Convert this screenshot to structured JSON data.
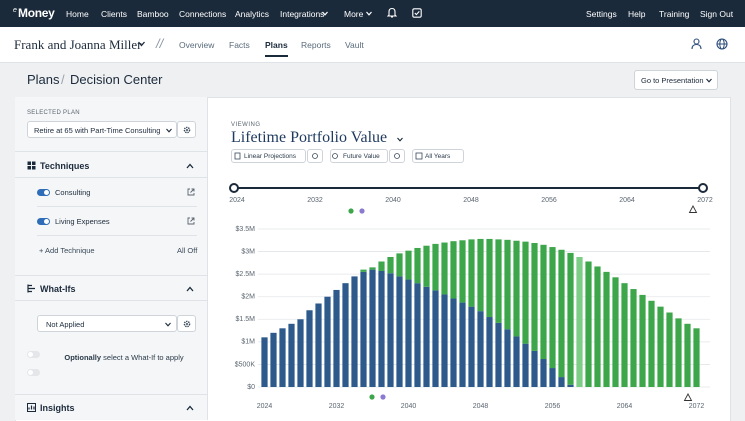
{
  "nav": {
    "logo_prefix": "e",
    "logo": "Money",
    "items": [
      "Home",
      "Clients",
      "Bamboo",
      "Connections",
      "Analytics",
      "Integrations",
      "More"
    ],
    "right_items": [
      "Settings",
      "Help",
      "Training",
      "Sign Out"
    ]
  },
  "client_bar": {
    "client_name": "Frank and Joanna Miller",
    "separator": "//",
    "tabs": [
      "Overview",
      "Facts",
      "Plans",
      "Reports",
      "Vault"
    ],
    "active_tab_index": 2
  },
  "header": {
    "breadcrumb": [
      "Plans",
      "Decision Center"
    ],
    "breadcrumb_separator": "/",
    "button": "Go to Presentation"
  },
  "sidebar": {
    "selected_plan_label": "SELECTED PLAN",
    "selected_plan": "Retire at 65 with Part-Time Consulting",
    "techniques": {
      "title": "Techniques",
      "items": [
        "Consulting",
        "Living Expenses"
      ],
      "add": "+ Add Technique",
      "all_off": "All Off"
    },
    "what_ifs": {
      "title": "What-Ifs",
      "select": "Not Applied",
      "hint_strong": "Optionally",
      "hint": "select a What-If to apply"
    },
    "insights": {
      "title": "Insights"
    }
  },
  "view": {
    "label": "VIEWING",
    "title": "Lifetime Portfolio Value",
    "filters": [
      "Linear Projections",
      "Future Value",
      "All Years"
    ]
  },
  "chart_data": {
    "type": "stacked_bar",
    "x": [
      2024,
      2025,
      2026,
      2027,
      2028,
      2029,
      2030,
      2031,
      2032,
      2033,
      2034,
      2035,
      2036,
      2037,
      2038,
      2039,
      2040,
      2041,
      2042,
      2043,
      2044,
      2045,
      2046,
      2047,
      2048,
      2049,
      2050,
      2051,
      2052,
      2053,
      2054,
      2055,
      2056,
      2057,
      2058,
      2059,
      2060,
      2061,
      2062,
      2063,
      2064,
      2065,
      2066,
      2067,
      2068,
      2069,
      2070,
      2071,
      2072
    ],
    "series": [
      {
        "color": "#2d5a8b",
        "values": [
          1100000,
          1200000,
          1300000,
          1400000,
          1500000,
          1700000,
          1850000,
          2000000,
          2150000,
          2300000,
          2450000,
          2550000,
          2600000,
          2570000,
          2520000,
          2450000,
          2380000,
          2300000,
          2220000,
          2140000,
          2050000,
          1960000,
          1870000,
          1780000,
          1680000,
          1550000,
          1420000,
          1280000,
          1120000,
          960000,
          800000,
          620000,
          420000,
          220000,
          50000,
          0,
          0,
          0,
          0,
          0,
          0,
          0,
          0,
          0,
          0,
          0,
          0,
          0,
          0
        ]
      },
      {
        "color": "#3da64b",
        "highlight": {
          "x": 2059,
          "color": "#7ccd85"
        },
        "values": [
          0,
          0,
          0,
          0,
          0,
          0,
          0,
          0,
          0,
          0,
          0,
          50000,
          50000,
          210000,
          360000,
          510000,
          640000,
          780000,
          910000,
          1030000,
          1150000,
          1270000,
          1380000,
          1490000,
          1600000,
          1730000,
          1850000,
          1980000,
          2120000,
          2260000,
          2390000,
          2530000,
          2680000,
          2820000,
          2920000,
          2880000,
          2780000,
          2670000,
          2550000,
          2430000,
          2300000,
          2170000,
          2040000,
          1910000,
          1780000,
          1650000,
          1520000,
          1400000,
          1300000
        ]
      }
    ],
    "xlim": [
      2022.5,
      2073.5
    ],
    "xticks": [
      2024,
      2032,
      2040,
      2048,
      2056,
      2064,
      2072
    ],
    "ylim": [
      0,
      3500000
    ],
    "yticks": [
      {
        "value": 0,
        "label": "$0"
      },
      {
        "value": 500000,
        "label": "$500K"
      },
      {
        "value": 1000000,
        "label": "$1M"
      },
      {
        "value": 1500000,
        "label": "$1.5M"
      },
      {
        "value": 2000000,
        "label": "$2M"
      },
      {
        "value": 2500000,
        "label": "$2.5M"
      },
      {
        "value": 3000000,
        "label": "$3M"
      },
      {
        "value": 3500000,
        "label": "$3.5M"
      }
    ],
    "grid": true
  }
}
